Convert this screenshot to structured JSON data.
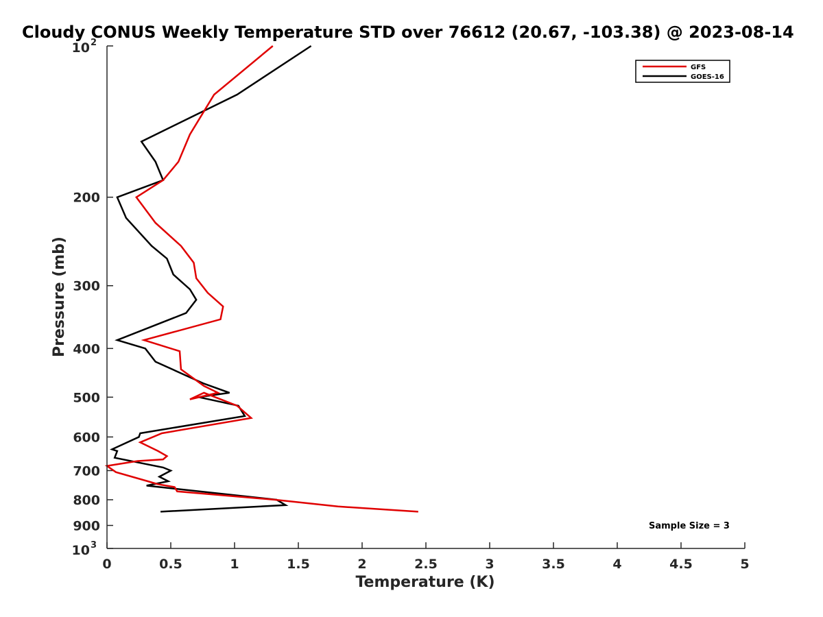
{
  "chart_data": {
    "type": "line",
    "title": "Cloudy CONUS Weekly Temperature STD over 76612 (20.67, -103.38) @ 2023-08-14",
    "xlabel": "Temperature (K)",
    "ylabel": "Pressure (mb)",
    "xlim": [
      0,
      5
    ],
    "ylim": [
      100,
      1000
    ],
    "yscale": "log",
    "y_reversed": true,
    "xticks": [
      "0",
      "0.5",
      "1",
      "1.5",
      "2",
      "2.5",
      "3",
      "3.5",
      "4",
      "4.5",
      "5"
    ],
    "yticks": [
      {
        "value": 100,
        "base": "10",
        "exp": "2"
      },
      {
        "value": 200,
        "label": "200"
      },
      {
        "value": 300,
        "label": "300"
      },
      {
        "value": 400,
        "label": "400"
      },
      {
        "value": 500,
        "label": "500"
      },
      {
        "value": 600,
        "label": "600"
      },
      {
        "value": 700,
        "label": "700"
      },
      {
        "value": 800,
        "label": "800"
      },
      {
        "value": 900,
        "label": "900"
      },
      {
        "value": 1000,
        "base": "10",
        "exp": "3"
      }
    ],
    "legend_position": "top-right",
    "annotation": "Sample Size = 3",
    "series": [
      {
        "name": "GFS",
        "color": "#e00000",
        "points": [
          [
            1.3,
            100
          ],
          [
            0.84,
            125
          ],
          [
            0.65,
            150
          ],
          [
            0.56,
            170
          ],
          [
            0.44,
            185
          ],
          [
            0.23,
            200
          ],
          [
            0.38,
            225
          ],
          [
            0.58,
            250
          ],
          [
            0.68,
            270
          ],
          [
            0.7,
            290
          ],
          [
            0.79,
            310
          ],
          [
            0.91,
            330
          ],
          [
            0.89,
            350
          ],
          [
            0.29,
            385
          ],
          [
            0.57,
            405
          ],
          [
            0.58,
            440
          ],
          [
            0.76,
            475
          ],
          [
            0.87,
            490
          ],
          [
            0.65,
            505
          ],
          [
            0.76,
            490
          ],
          [
            1.02,
            520
          ],
          [
            1.13,
            550
          ],
          [
            0.43,
            590
          ],
          [
            0.26,
            615
          ],
          [
            0.4,
            640
          ],
          [
            0.47,
            655
          ],
          [
            0.44,
            665
          ],
          [
            0.24,
            670
          ],
          [
            0.0,
            685
          ],
          [
            0.07,
            705
          ],
          [
            0.32,
            735
          ],
          [
            0.4,
            745
          ],
          [
            0.53,
            755
          ],
          [
            0.55,
            770
          ],
          [
            1.32,
            800
          ],
          [
            1.81,
            825
          ],
          [
            2.44,
            845
          ]
        ]
      },
      {
        "name": "GOES-16",
        "color": "#000000",
        "points": [
          [
            1.6,
            100
          ],
          [
            1.02,
            125
          ],
          [
            0.27,
            155
          ],
          [
            0.38,
            170
          ],
          [
            0.44,
            185
          ],
          [
            0.08,
            200
          ],
          [
            0.15,
            220
          ],
          [
            0.35,
            250
          ],
          [
            0.47,
            265
          ],
          [
            0.52,
            285
          ],
          [
            0.65,
            305
          ],
          [
            0.7,
            320
          ],
          [
            0.62,
            340
          ],
          [
            0.08,
            385
          ],
          [
            0.3,
            400
          ],
          [
            0.38,
            425
          ],
          [
            0.76,
            470
          ],
          [
            0.96,
            490
          ],
          [
            0.72,
            500
          ],
          [
            1.03,
            520
          ],
          [
            1.08,
            545
          ],
          [
            0.26,
            590
          ],
          [
            0.25,
            600
          ],
          [
            0.04,
            635
          ],
          [
            0.08,
            640
          ],
          [
            0.06,
            660
          ],
          [
            0.44,
            690
          ],
          [
            0.5,
            700
          ],
          [
            0.41,
            720
          ],
          [
            0.48,
            735
          ],
          [
            0.31,
            750
          ],
          [
            1.33,
            800
          ],
          [
            1.4,
            820
          ],
          [
            0.42,
            845
          ]
        ]
      }
    ]
  }
}
